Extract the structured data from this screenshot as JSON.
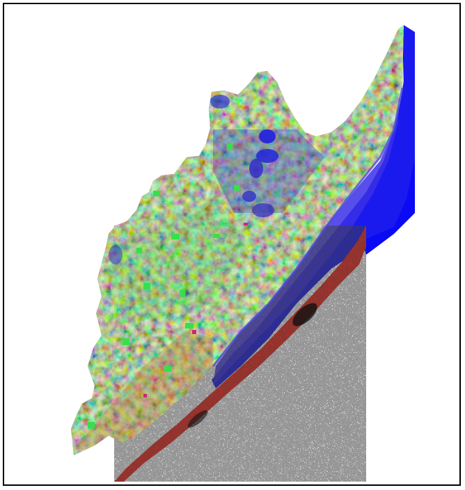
{
  "map": {
    "colors": {
      "frame": "#000000",
      "background": "#ffffff",
      "water": "#1010f0",
      "water_shallow": "#3a2ee8",
      "land_base": "#7a7a48",
      "vegetation_green": "#35d24a",
      "vegetation_olive": "#6e8a3a",
      "soil_orange": "#c87a30",
      "soil_red": "#c84a2a",
      "wetland_blue": "#3a3ac8",
      "sand_red": "#f0281c",
      "dark_speckle": "#111111",
      "magenta_patch": "#c8287a"
    }
  }
}
